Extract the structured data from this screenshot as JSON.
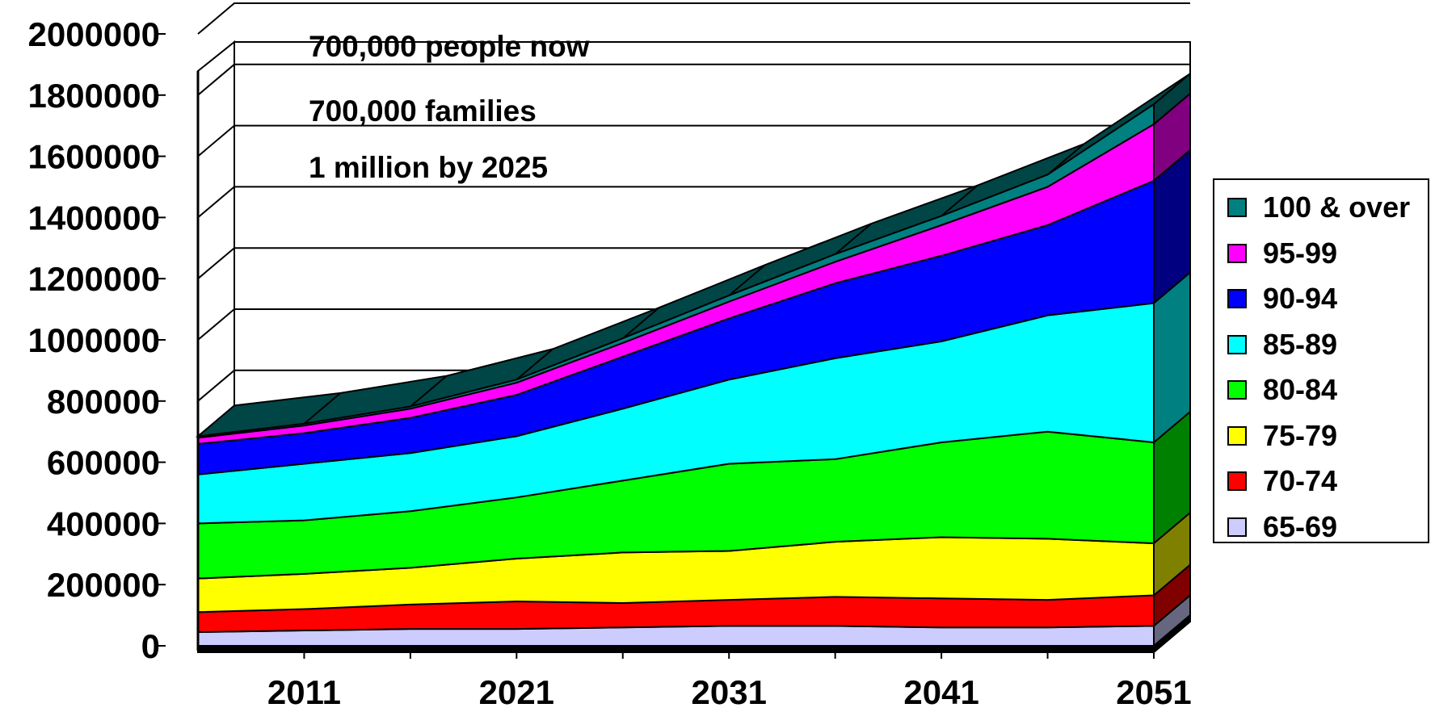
{
  "chart_data": {
    "type": "area",
    "stacked": true,
    "three_d": true,
    "x": [
      "2006",
      "2011",
      "2016",
      "2021",
      "2026",
      "2031",
      "2036",
      "2041",
      "2046",
      "2051"
    ],
    "x_tick_labels": [
      "2011",
      "2021",
      "2031",
      "2041",
      "2051"
    ],
    "ylim": [
      0,
      2000000
    ],
    "y_ticks": [
      0,
      200000,
      400000,
      600000,
      800000,
      1000000,
      1200000,
      1400000,
      1600000,
      1800000,
      2000000
    ],
    "y_tick_labels": [
      "0",
      "200000",
      "400000",
      "600000",
      "800000",
      "1000000",
      "1200000",
      "1400000",
      "1600000",
      "1800000",
      "2000000"
    ],
    "grid": true,
    "legend_position": "right",
    "series": [
      {
        "name": "65-69",
        "color": "#ccccff",
        "values": [
          45000,
          50000,
          55000,
          55000,
          60000,
          65000,
          65000,
          60000,
          60000,
          65000
        ]
      },
      {
        "name": "70-74",
        "color": "#ff0000",
        "values": [
          65000,
          70000,
          80000,
          90000,
          80000,
          85000,
          95000,
          95000,
          90000,
          100000
        ]
      },
      {
        "name": "75-79",
        "color": "#ffff00",
        "values": [
          110000,
          115000,
          120000,
          140000,
          165000,
          160000,
          180000,
          200000,
          200000,
          170000
        ]
      },
      {
        "name": "80-84",
        "color": "#00ff00",
        "values": [
          180000,
          175000,
          185000,
          200000,
          235000,
          285000,
          270000,
          310000,
          350000,
          330000
        ]
      },
      {
        "name": "85-89",
        "color": "#00ffff",
        "values": [
          160000,
          185000,
          190000,
          200000,
          235000,
          275000,
          330000,
          330000,
          380000,
          455000
        ]
      },
      {
        "name": "90-94",
        "color": "#0000ff",
        "values": [
          100000,
          100000,
          115000,
          135000,
          170000,
          200000,
          245000,
          280000,
          295000,
          400000
        ]
      },
      {
        "name": "95-99",
        "color": "#ff00ff",
        "values": [
          20000,
          25000,
          30000,
          40000,
          45000,
          55000,
          70000,
          100000,
          125000,
          185000
        ]
      },
      {
        "name": "100 & over",
        "color": "#008080",
        "values": [
          5000,
          6000,
          7000,
          10000,
          15000,
          20000,
          25000,
          30000,
          40000,
          65000
        ]
      }
    ],
    "annotations": [
      "700,000 people now",
      "700,000 families",
      "1 million by 2025"
    ],
    "legend_order": [
      "100 & over",
      "95-99",
      "90-94",
      "85-89",
      "80-84",
      "75-79",
      "70-74",
      "65-69"
    ]
  }
}
